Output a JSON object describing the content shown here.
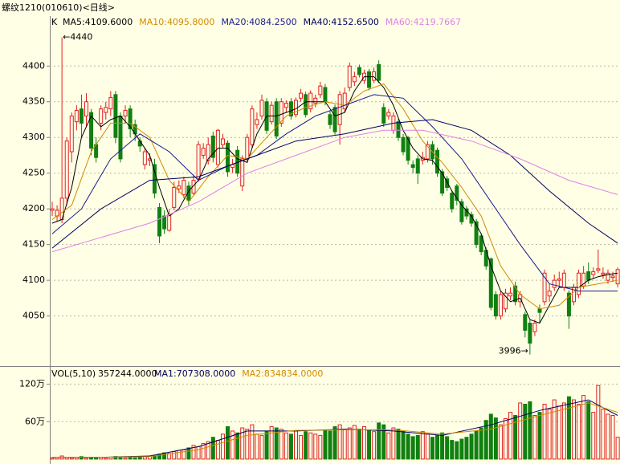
{
  "chart_data": {
    "type": "candlestick",
    "title": "螺纹1210(010610)<日线>",
    "header_label": "K",
    "up_color": "#e02020",
    "down_color": "#108010",
    "grid": true,
    "ylim": [
      3981,
      4470
    ],
    "yticks": [
      4050,
      4100,
      4150,
      4200,
      4250,
      4300,
      4350,
      4400
    ],
    "annotations": [
      {
        "text": "←4440",
        "x": 2,
        "y": 4440
      },
      {
        "text": "3996→",
        "x": 98,
        "y": 3996
      }
    ],
    "open": [
      4198,
      4190,
      4185,
      4215,
      4280,
      4322,
      4340,
      4330,
      4335,
      4290,
      4320,
      4335,
      4340,
      4360,
      4330,
      4330,
      4340,
      4318,
      4295,
      4262,
      4268,
      4262,
      4202,
      4190,
      4170,
      4202,
      4228,
      4220,
      4232,
      4222,
      4242,
      4275,
      4268,
      4302,
      4262,
      4290,
      4292,
      4258,
      4282,
      4232,
      4270,
      4290,
      4318,
      4330,
      4350,
      4322,
      4350,
      4320,
      4342,
      4350,
      4332,
      4355,
      4360,
      4340,
      4348,
      4360,
      4370,
      4332,
      4342,
      4318,
      4340,
      4370,
      4378,
      4398,
      4380,
      4392,
      4380,
      4402,
      4342,
      4330,
      4310,
      4322,
      4300,
      4300,
      4262,
      4270,
      4268,
      4270,
      4290,
      4282,
      4252,
      4242,
      4222,
      4232,
      4210,
      4200,
      4192,
      4182,
      4162,
      4142,
      4130,
      4080,
      4050,
      4060,
      4078,
      4092,
      4070,
      4052,
      4040,
      4028,
      4060,
      4070,
      4078,
      4090,
      4100,
      4090,
      4082,
      4070,
      4080,
      4092,
      4112,
      4108,
      4114,
      4108,
      4100,
      4104,
      4095
    ],
    "high": [
      4210,
      4205,
      4440,
      4300,
      4335,
      4345,
      4360,
      4362,
      4340,
      4300,
      4345,
      4350,
      4365,
      4365,
      4335,
      4345,
      4345,
      4325,
      4300,
      4285,
      4278,
      4270,
      4208,
      4198,
      4200,
      4238,
      4240,
      4245,
      4238,
      4248,
      4295,
      4292,
      4300,
      4308,
      4312,
      4305,
      4296,
      4270,
      4288,
      4275,
      4305,
      4345,
      4335,
      4360,
      4355,
      4350,
      4355,
      4355,
      4352,
      4355,
      4356,
      4368,
      4364,
      4366,
      4360,
      4378,
      4375,
      4338,
      4346,
      4365,
      4370,
      4405,
      4392,
      4402,
      4395,
      4396,
      4398,
      4408,
      4348,
      4340,
      4335,
      4326,
      4305,
      4302,
      4268,
      4275,
      4280,
      4295,
      4295,
      4286,
      4256,
      4246,
      4226,
      4235,
      4214,
      4204,
      4196,
      4186,
      4165,
      4146,
      4132,
      4085,
      4085,
      4088,
      4090,
      4098,
      4085,
      4056,
      4044,
      4045,
      4066,
      4115,
      4095,
      4108,
      4112,
      4115,
      4086,
      4095,
      4115,
      4120,
      4125,
      4118,
      4143,
      4118,
      4115,
      4112,
      4118
    ],
    "low": [
      4190,
      4182,
      4180,
      4205,
      4265,
      4310,
      4300,
      4315,
      4275,
      4265,
      4310,
      4325,
      4330,
      4292,
      4265,
      4320,
      4300,
      4295,
      4280,
      4255,
      4260,
      4215,
      4152,
      4165,
      4168,
      4198,
      4222,
      4215,
      4205,
      4218,
      4238,
      4270,
      4262,
      4265,
      4258,
      4285,
      4245,
      4250,
      4245,
      4225,
      4265,
      4285,
      4312,
      4325,
      4305,
      4318,
      4298,
      4315,
      4335,
      4325,
      4328,
      4350,
      4328,
      4335,
      4342,
      4355,
      4345,
      4312,
      4304,
      4290,
      4335,
      4365,
      4372,
      4384,
      4375,
      4366,
      4376,
      4376,
      4315,
      4325,
      4305,
      4295,
      4275,
      4262,
      4250,
      4235,
      4262,
      4265,
      4262,
      4245,
      4218,
      4225,
      4195,
      4205,
      4178,
      4185,
      4175,
      4145,
      4135,
      4115,
      4058,
      4045,
      4045,
      4055,
      4072,
      4065,
      4062,
      4020,
      3996,
      4022,
      4040,
      4065,
      4070,
      4085,
      4090,
      4085,
      4032,
      4065,
      4075,
      4088,
      4095,
      4102,
      4110,
      4102,
      4095,
      4098,
      4090
    ],
    "close": [
      4200,
      4198,
      4215,
      4295,
      4330,
      4338,
      4320,
      4350,
      4285,
      4272,
      4340,
      4342,
      4356,
      4300,
      4270,
      4338,
      4312,
      4305,
      4288,
      4280,
      4270,
      4222,
      4162,
      4172,
      4192,
      4230,
      4232,
      4240,
      4212,
      4240,
      4290,
      4285,
      4290,
      4272,
      4310,
      4298,
      4252,
      4262,
      4250,
      4270,
      4300,
      4340,
      4325,
      4352,
      4310,
      4345,
      4302,
      4350,
      4348,
      4330,
      4352,
      4362,
      4332,
      4362,
      4355,
      4372,
      4350,
      4318,
      4308,
      4360,
      4362,
      4400,
      4385,
      4388,
      4390,
      4370,
      4392,
      4380,
      4320,
      4335,
      4330,
      4300,
      4280,
      4268,
      4258,
      4250,
      4272,
      4290,
      4270,
      4250,
      4222,
      4230,
      4200,
      4212,
      4182,
      4190,
      4180,
      4150,
      4140,
      4120,
      4062,
      4050,
      4080,
      4082,
      4082,
      4070,
      4080,
      4030,
      4012,
      4040,
      4055,
      4110,
      4085,
      4100,
      4102,
      4110,
      4050,
      4090,
      4110,
      4110,
      4100,
      4112,
      4116,
      4110,
      4110,
      4106,
      4115
    ],
    "ma": [
      {
        "name": "MA5:4109.6000",
        "color": "#000000",
        "x": [
          0,
          2,
          4,
          6,
          8,
          10,
          12,
          14,
          16,
          18,
          20,
          22,
          24,
          26,
          28,
          30,
          32,
          34,
          36,
          38,
          40,
          42,
          44,
          46,
          48,
          50,
          52,
          54,
          56,
          58,
          60,
          62,
          64,
          66,
          68,
          70,
          72,
          74,
          76,
          78,
          80,
          82,
          84,
          86,
          88,
          90,
          92,
          94,
          96,
          98,
          100,
          102,
          104,
          106,
          108,
          110,
          112,
          114,
          116
        ],
        "values": [
          4180,
          4185,
          4230,
          4300,
          4330,
          4315,
          4325,
          4330,
          4315,
          4295,
          4275,
          4230,
          4190,
          4200,
          4225,
          4240,
          4270,
          4285,
          4285,
          4270,
          4265,
          4305,
          4330,
          4330,
          4335,
          4340,
          4350,
          4350,
          4350,
          4330,
          4335,
          4365,
          4385,
          4385,
          4370,
          4345,
          4310,
          4285,
          4270,
          4268,
          4250,
          4225,
          4205,
          4190,
          4165,
          4120,
          4085,
          4070,
          4075,
          4045,
          4040,
          4065,
          4090,
          4090,
          4090,
          4100,
          4105,
          4108,
          4110
        ]
      },
      {
        "name": "MA10:4095.8000",
        "color": "#d08a00",
        "x": [
          0,
          4,
          8,
          12,
          16,
          20,
          24,
          28,
          32,
          36,
          40,
          44,
          48,
          52,
          56,
          60,
          64,
          68,
          72,
          76,
          80,
          84,
          88,
          92,
          96,
          100,
          104,
          108,
          112,
          116
        ],
        "values": [
          4185,
          4205,
          4280,
          4320,
          4320,
          4300,
          4240,
          4210,
          4245,
          4275,
          4270,
          4300,
          4330,
          4342,
          4350,
          4345,
          4365,
          4375,
          4340,
          4295,
          4265,
          4230,
          4190,
          4120,
          4080,
          4060,
          4065,
          4090,
          4095,
          4100
        ]
      },
      {
        "name": "MA20:4084.2500",
        "color": "#1a1a8c",
        "x": [
          0,
          6,
          12,
          18,
          24,
          30,
          36,
          42,
          48,
          54,
          60,
          66,
          72,
          78,
          84,
          90,
          96,
          102,
          108,
          116
        ],
        "values": [
          4165,
          4200,
          4270,
          4305,
          4280,
          4240,
          4260,
          4275,
          4305,
          4330,
          4345,
          4360,
          4355,
          4315,
          4270,
          4210,
          4150,
          4095,
          4085,
          4085
        ]
      },
      {
        "name": "MA40:4152.6500",
        "color": "#000060",
        "x": [
          0,
          10,
          20,
          30,
          40,
          50,
          60,
          70,
          78,
          86,
          94,
          102,
          110,
          116
        ],
        "values": [
          4145,
          4200,
          4240,
          4245,
          4270,
          4295,
          4305,
          4320,
          4325,
          4310,
          4275,
          4225,
          4180,
          4152
        ]
      },
      {
        "name": "MA60:4219.7667",
        "color": "#e080e8",
        "x": [
          0,
          10,
          20,
          30,
          40,
          50,
          60,
          68,
          76,
          86,
          96,
          106,
          116
        ],
        "values": [
          4140,
          4160,
          4180,
          4210,
          4250,
          4275,
          4300,
          4310,
          4310,
          4295,
          4270,
          4240,
          4220
        ]
      }
    ],
    "volume": {
      "title": "VOL(5,10)",
      "value_label": "357244.0000",
      "ylim": [
        -4,
        144
      ],
      "yticks": [
        {
          "value": 60,
          "label": "60万"
        },
        {
          "value": 120,
          "label": "120万"
        }
      ],
      "values": [
        2,
        3,
        5,
        3,
        2,
        3,
        4,
        2,
        3,
        2,
        3,
        2,
        3,
        4,
        3,
        2,
        3,
        2,
        3,
        4,
        5,
        6,
        8,
        10,
        9,
        12,
        14,
        15,
        18,
        22,
        20,
        25,
        28,
        35,
        30,
        40,
        52,
        45,
        42,
        50,
        48,
        55,
        40,
        38,
        45,
        52,
        50,
        48,
        42,
        40,
        45,
        38,
        44,
        42,
        40,
        38,
        46,
        45,
        52,
        55,
        48,
        50,
        54,
        48,
        52,
        46,
        44,
        58,
        55,
        42,
        50,
        48,
        45,
        40,
        36,
        38,
        44,
        40,
        35,
        38,
        42,
        36,
        30,
        28,
        32,
        35,
        40,
        45,
        50,
        62,
        72,
        66,
        55,
        65,
        75,
        70,
        90,
        88,
        92,
        70,
        75,
        88,
        80,
        95,
        85,
        90,
        100,
        95,
        88,
        102,
        92,
        75,
        118,
        80,
        72,
        70,
        35
      ],
      "ma": [
        {
          "name": "MA1:707308.0000",
          "color": "#000060",
          "x": [
            0,
            10,
            20,
            30,
            40,
            50,
            60,
            70,
            80,
            90,
            100,
            110,
            116
          ],
          "values": [
            3,
            3,
            5,
            20,
            45,
            45,
            48,
            45,
            38,
            55,
            78,
            95,
            70
          ]
        },
        {
          "name": "MA2:834834.0000",
          "color": "#d08a00",
          "x": [
            0,
            10,
            20,
            30,
            40,
            50,
            60,
            70,
            80,
            90,
            100,
            110,
            116
          ],
          "values": [
            3,
            3,
            4,
            15,
            38,
            46,
            47,
            47,
            40,
            48,
            70,
            90,
            75
          ]
        }
      ]
    }
  }
}
